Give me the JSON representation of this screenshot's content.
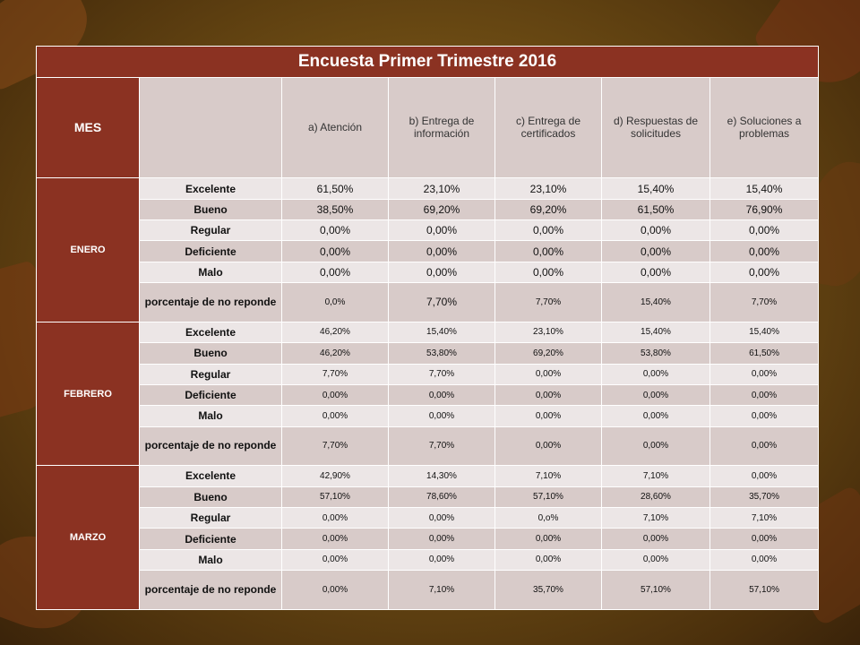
{
  "title": "Encuesta  Primer Trimestre 2016",
  "header": {
    "mes": "MES",
    "blank": "",
    "columns": [
      "a) Atención",
      "b) Entrega de información",
      "c) Entrega de certificados",
      "d) Respuestas de solicitudes",
      "e) Soluciones a problemas"
    ]
  },
  "months": [
    {
      "name": "ENERO",
      "rows": [
        {
          "label": "Excelente",
          "values": [
            "61,50%",
            "23,10%",
            "23,10%",
            "15,40%",
            "15,40%"
          ]
        },
        {
          "label": "Bueno",
          "values": [
            "38,50%",
            "69,20%",
            "69,20%",
            "61,50%",
            "76,90%"
          ]
        },
        {
          "label": "Regular",
          "values": [
            "0,00%",
            "0,00%",
            "0,00%",
            "0,00%",
            "0,00%"
          ]
        },
        {
          "label": "Deficiente",
          "values": [
            "0,00%",
            "0,00%",
            "0,00%",
            "0,00%",
            "0,00%"
          ]
        },
        {
          "label": "Malo",
          "values": [
            "0,00%",
            "0,00%",
            "0,00%",
            "0,00%",
            "0,00%"
          ]
        },
        {
          "label": "porcentaje  de no reponde",
          "values": [
            "0,0%",
            "7,70%",
            "7,70%",
            "15,40%",
            "7,70%"
          ]
        }
      ]
    },
    {
      "name": "FEBRERO",
      "rows": [
        {
          "label": "Excelente",
          "values": [
            "46,20%",
            "15,40%",
            "23,10%",
            "15,40%",
            "15,40%"
          ]
        },
        {
          "label": "Bueno",
          "values": [
            "46,20%",
            "53,80%",
            "69,20%",
            "53,80%",
            "61,50%"
          ]
        },
        {
          "label": "Regular",
          "values": [
            "7,70%",
            "7,70%",
            "0,00%",
            "0,00%",
            "0,00%"
          ]
        },
        {
          "label": "Deficiente",
          "values": [
            "0,00%",
            "0,00%",
            "0,00%",
            "0,00%",
            "0,00%"
          ]
        },
        {
          "label": "Malo",
          "values": [
            "0,00%",
            "0,00%",
            "0,00%",
            "0,00%",
            "0,00%"
          ]
        },
        {
          "label": "porcentaje  de no reponde",
          "values": [
            "7,70%",
            "7,70%",
            "0,00%",
            "0,00%",
            "0,00%"
          ]
        }
      ]
    },
    {
      "name": "MARZO",
      "rows": [
        {
          "label": "Excelente",
          "values": [
            "42,90%",
            "14,30%",
            "7,10%",
            "7,10%",
            "0,00%"
          ]
        },
        {
          "label": "Bueno",
          "values": [
            "57,10%",
            "78,60%",
            "57,10%",
            "28,60%",
            "35,70%"
          ]
        },
        {
          "label": "Regular",
          "values": [
            "0,00%",
            "0,00%",
            "0,o%",
            "7,10%",
            "7,10%"
          ]
        },
        {
          "label": "Deficiente",
          "values": [
            "0,00%",
            "0,00%",
            "0,00%",
            "0,00%",
            "0,00%"
          ]
        },
        {
          "label": "Malo",
          "values": [
            "0,00%",
            "0,00%",
            "0,00%",
            "0,00%",
            "0,00%"
          ]
        },
        {
          "label": "porcentaje  de no reponde",
          "values": [
            "0,00%",
            "7,10%",
            "35,70%",
            "57,10%",
            "57,10%"
          ]
        }
      ]
    }
  ]
}
